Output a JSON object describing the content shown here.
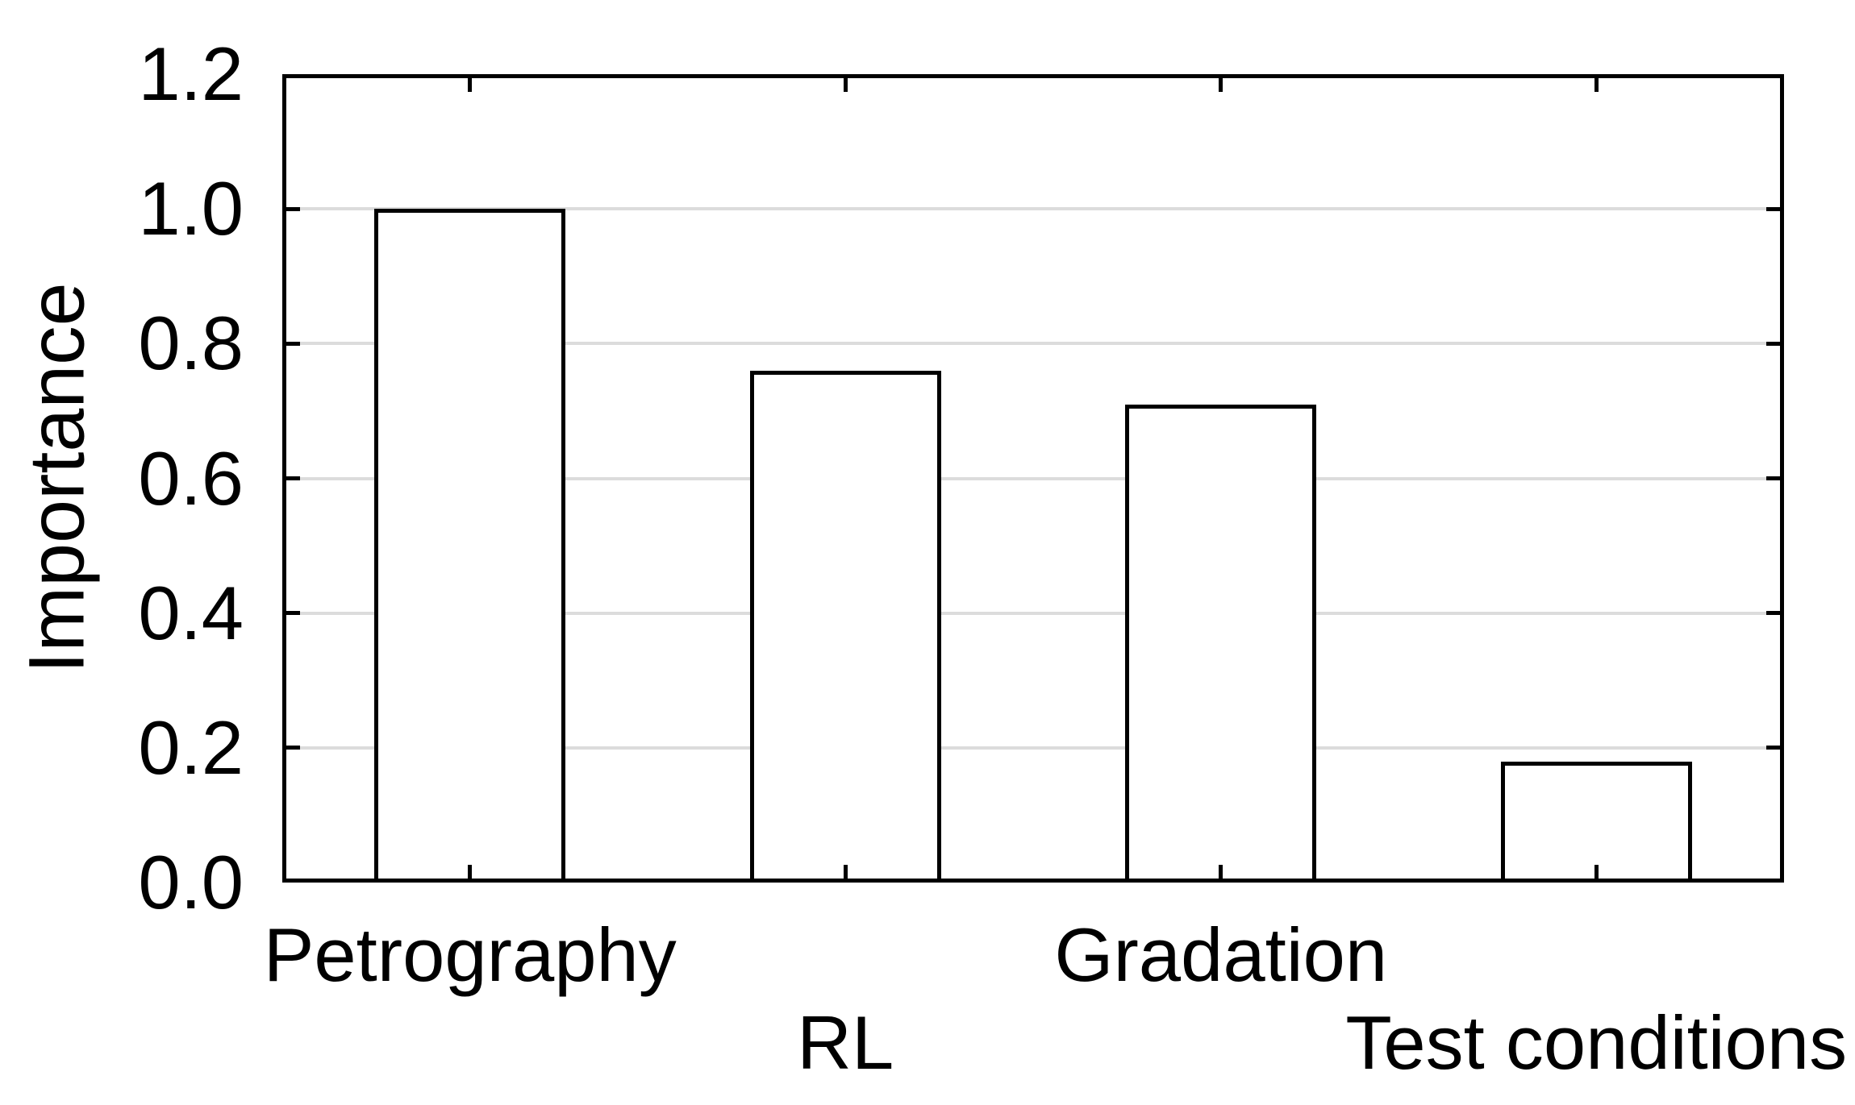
{
  "chart_data": {
    "type": "bar",
    "title": "",
    "categories": [
      "Petrography",
      "RL",
      "Gradation",
      "Test conditions"
    ],
    "values": [
      1.0,
      0.76,
      0.71,
      0.18
    ],
    "xlabel": "",
    "ylabel": "Importance",
    "ylim": [
      0.0,
      1.2
    ],
    "yticks": [
      0.0,
      0.2,
      0.4,
      0.6,
      0.8,
      1.0,
      1.2
    ],
    "ytick_labels": [
      "0.0",
      "0.2",
      "0.4",
      "0.6",
      "0.8",
      "1.0",
      "1.2"
    ],
    "gridline_values": [
      0.2,
      0.4,
      0.6,
      0.8,
      1.0
    ],
    "grid": "horizontal",
    "legend_position": "none",
    "x_label_layout": "staggered-two-rows",
    "tick_style": "inward-mirrored-all-sides",
    "bar_fill_color": "#ffffff",
    "bar_border_color": "#000000",
    "axis_color": "#000000",
    "gridline_color": "#dcdcdc",
    "text_color": "#000000",
    "background_color": "#ffffff"
  }
}
